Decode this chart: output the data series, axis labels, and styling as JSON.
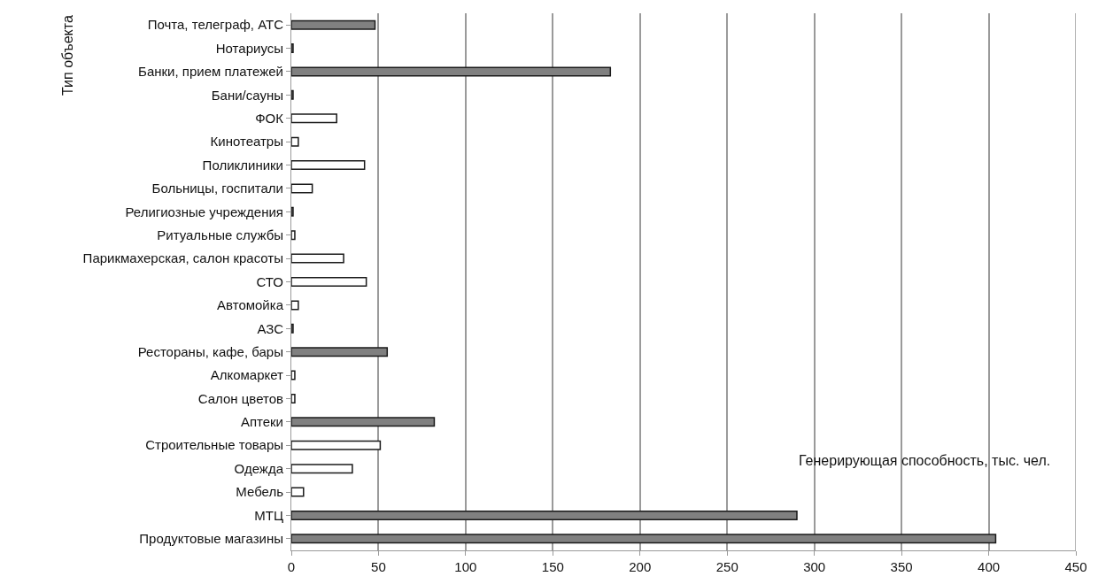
{
  "chart_data": {
    "type": "bar",
    "orientation": "horizontal",
    "xlabel": "Генерирующая способность, тыс. чел.",
    "ylabel": "Тип объекта",
    "categories": [
      "Почта, телеграф, АТС",
      "Нотариусы",
      "Банки, прием платежей",
      "Бани/сауны",
      "ФОК",
      "Кинотеатры",
      "Поликлиники",
      "Больницы, госпитали",
      "Религиозные учреждения",
      "Ритуальные службы",
      "Парикмахерская, салон красоты",
      "СТО",
      "Автомойка",
      "АЗС",
      "Рестораны, кафе, бары",
      "Алкомаркет",
      "Салон цветов",
      "Аптеки",
      "Строительные товары",
      "Одежда",
      "Мебель",
      "МТЦ",
      "Продуктовые магазины"
    ],
    "values": [
      48,
      1,
      183,
      1,
      26,
      4,
      42,
      12,
      1,
      2,
      30,
      43,
      4,
      1,
      55,
      2,
      2,
      82,
      51,
      35,
      7,
      290,
      404
    ],
    "colors": [
      "#808080",
      "#808080",
      "#808080",
      "#808080",
      "#ffffff",
      "#ffffff",
      "#ffffff",
      "#ffffff",
      "#808080",
      "#ffffff",
      "#ffffff",
      "#ffffff",
      "#ffffff",
      "#808080",
      "#808080",
      "#ffffff",
      "#ffffff",
      "#808080",
      "#ffffff",
      "#ffffff",
      "#ffffff",
      "#808080",
      "#808080"
    ],
    "xlim": [
      0,
      450
    ],
    "xticks": [
      0,
      50,
      100,
      150,
      200,
      250,
      300,
      350,
      400,
      450
    ],
    "grid": "x"
  }
}
